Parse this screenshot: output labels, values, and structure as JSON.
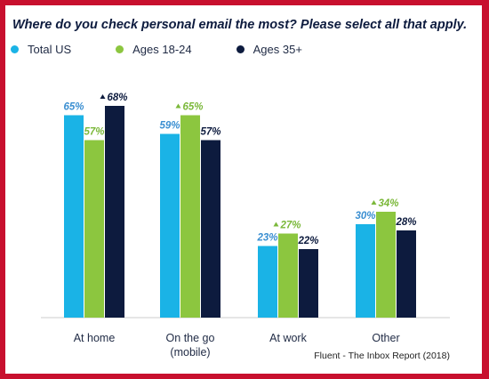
{
  "chart_data": {
    "type": "bar",
    "title": "Where do you check personal email the most? Please select all that apply.",
    "categories": [
      "At home",
      "On the go\n(mobile)",
      "At work",
      "Other"
    ],
    "series": [
      {
        "name": "Total US",
        "color": "#1ab3e6",
        "label_color": "#3b8fd1",
        "values": [
          65,
          59,
          23,
          30
        ],
        "highlight": [
          false,
          false,
          false,
          false
        ]
      },
      {
        "name": "Ages 18-24",
        "color": "#8cc63f",
        "label_color": "#7bb83a",
        "values": [
          57,
          65,
          27,
          34
        ],
        "highlight": [
          false,
          true,
          true,
          true
        ]
      },
      {
        "name": "Ages 35+",
        "color": "#0d1b3e",
        "label_color": "#0d1b3e",
        "values": [
          68,
          57,
          22,
          28
        ],
        "highlight": [
          true,
          false,
          false,
          false
        ]
      }
    ],
    "value_suffix": "%",
    "ylim": [
      0,
      70
    ],
    "grid": false,
    "legend_position": "top-left"
  },
  "source": "Fluent -  The Inbox Report (2018)"
}
